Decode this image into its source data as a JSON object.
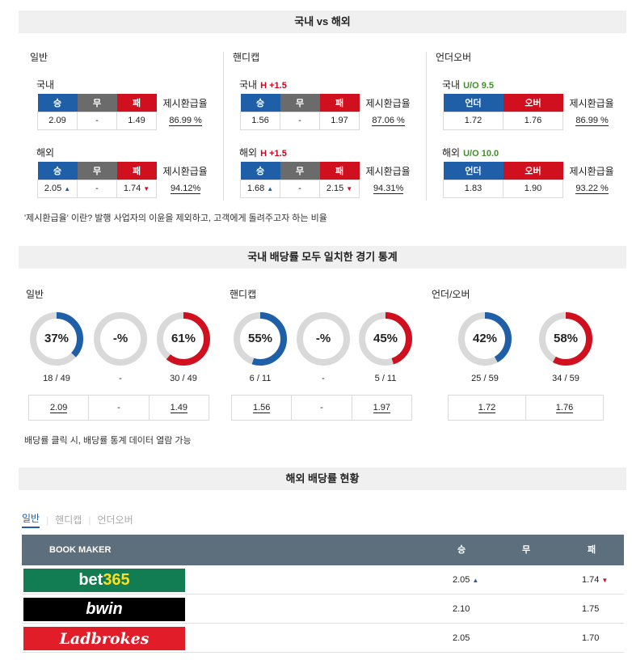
{
  "section1": {
    "title": "국내 vs 해외",
    "columns": [
      {
        "title": "일반",
        "headers": [
          "승",
          "무",
          "패"
        ],
        "rate_label": "제시환급율",
        "domestic": {
          "label": "국내",
          "handicap": "",
          "values": [
            "2.09",
            "-",
            "1.49"
          ],
          "arrows": [
            "",
            "",
            ""
          ],
          "rate": "86.99 %"
        },
        "overseas": {
          "label": "해외",
          "handicap": "",
          "values": [
            "2.05",
            "-",
            "1.74"
          ],
          "arrows": [
            "up",
            "",
            "down"
          ],
          "rate": "94.12%"
        }
      },
      {
        "title": "핸디캡",
        "headers": [
          "승",
          "무",
          "패"
        ],
        "rate_label": "제시환급율",
        "domestic": {
          "label": "국내",
          "handicap": "H +1.5",
          "values": [
            "1.56",
            "-",
            "1.97"
          ],
          "arrows": [
            "",
            "",
            ""
          ],
          "rate": "87.06 %"
        },
        "overseas": {
          "label": "해외",
          "handicap": "H +1.5",
          "values": [
            "1.68",
            "-",
            "2.15"
          ],
          "arrows": [
            "up",
            "",
            "down"
          ],
          "rate": "94.31%"
        }
      },
      {
        "title": "언더오버",
        "headers": [
          "언더",
          "오버"
        ],
        "rate_label": "제시환급율",
        "domestic": {
          "label": "국내",
          "handicap": "U/O 9.5",
          "values": [
            "1.72",
            "1.76"
          ],
          "arrows": [
            "",
            ""
          ],
          "rate": "86.99 %"
        },
        "overseas": {
          "label": "해외",
          "handicap": "U/O 10.0",
          "values": [
            "1.83",
            "1.90"
          ],
          "arrows": [
            "",
            ""
          ],
          "rate": "93.22 %"
        }
      }
    ],
    "note": "'제시환급율' 이란? 발행 사업자의 이윤을 제외하고, 고객에게 돌려주고자 하는 비율"
  },
  "section2": {
    "title": "국내 배당률 모두 일치한 경기 통계",
    "groups": [
      {
        "title": "일반",
        "donuts": [
          {
            "label": "37%",
            "fraction": 0.37,
            "color": "#1f5fa8",
            "count": "18 / 49"
          },
          {
            "label": "-%",
            "fraction": 0,
            "color": "#1f5fa8",
            "count": "-"
          },
          {
            "label": "61%",
            "fraction": 0.61,
            "color": "#d0101e",
            "count": "30 / 49"
          }
        ],
        "odds": [
          "2.09",
          "-",
          "1.49"
        ]
      },
      {
        "title": "핸디캡",
        "donuts": [
          {
            "label": "55%",
            "fraction": 0.55,
            "color": "#1f5fa8",
            "count": "6 / 11"
          },
          {
            "label": "-%",
            "fraction": 0,
            "color": "#1f5fa8",
            "count": "-"
          },
          {
            "label": "45%",
            "fraction": 0.45,
            "color": "#d0101e",
            "count": "5 / 11"
          }
        ],
        "odds": [
          "1.56",
          "-",
          "1.97"
        ]
      },
      {
        "title": "언더/오버",
        "donuts": [
          {
            "label": "42%",
            "fraction": 0.42,
            "color": "#1f5fa8",
            "count": "25 / 59"
          },
          {
            "label": "58%",
            "fraction": 0.58,
            "color": "#d0101e",
            "count": "34 / 59"
          }
        ],
        "odds": [
          "1.72",
          "1.76"
        ]
      }
    ],
    "note": "배당률 클릭 시, 배당률 통계 데이터 열람 가능"
  },
  "section3": {
    "title": "해외 배당률 현황",
    "tabs": [
      "일반",
      "핸디캡",
      "언더오버"
    ],
    "header": {
      "bookmaker": "BOOK MAKER",
      "win": "승",
      "draw": "무",
      "lose": "패"
    },
    "rows": [
      {
        "name": "bet365",
        "bg": "#127c52",
        "fg": "#ffffff",
        "accent": "#ffdf1b",
        "win": "2.05",
        "win_arrow": "up",
        "draw": "",
        "lose": "1.74",
        "lose_arrow": "down"
      },
      {
        "name": "bwin",
        "bg": "#000000",
        "fg": "#ffffff",
        "win": "2.10",
        "win_arrow": "",
        "draw": "",
        "lose": "1.75",
        "lose_arrow": ""
      },
      {
        "name": "Ladbrokes",
        "bg": "#e21d2a",
        "fg": "#ffffff",
        "win": "2.05",
        "win_arrow": "",
        "draw": "",
        "lose": "1.70",
        "lose_arrow": ""
      }
    ]
  }
}
